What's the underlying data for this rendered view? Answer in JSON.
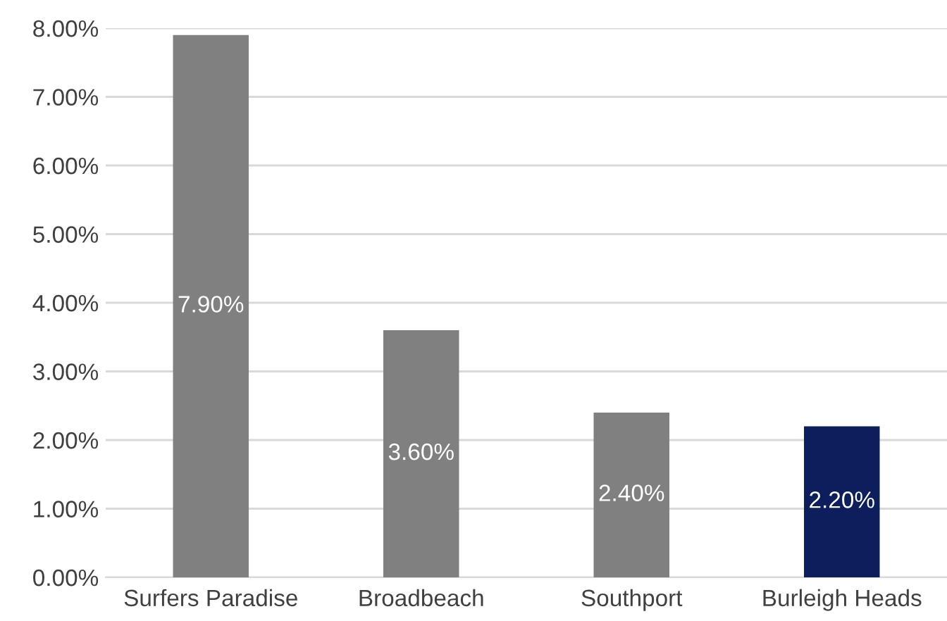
{
  "chart_data": {
    "type": "bar",
    "categories": [
      "Surfers Paradise",
      "Broadbeach",
      "Southport",
      "Burleigh Heads"
    ],
    "values": [
      7.9,
      3.6,
      2.4,
      2.2
    ],
    "colors": [
      "#808080",
      "#808080",
      "#808080",
      "#0c1f5c"
    ],
    "value_labels": [
      "7.90%",
      "3.60%",
      "2.40%",
      "2.20%"
    ],
    "ylim": [
      0,
      8
    ],
    "yticks": [
      {
        "value": 0,
        "label": "0.00%"
      },
      {
        "value": 1,
        "label": "1.00%"
      },
      {
        "value": 2,
        "label": "2.00%"
      },
      {
        "value": 3,
        "label": "3.00%"
      },
      {
        "value": 4,
        "label": "4.00%"
      },
      {
        "value": 5,
        "label": "5.00%"
      },
      {
        "value": 6,
        "label": "6.00%"
      },
      {
        "value": 7,
        "label": "7.00%"
      },
      {
        "value": 8,
        "label": "8.00%"
      }
    ],
    "grid": "y",
    "legend": false
  }
}
